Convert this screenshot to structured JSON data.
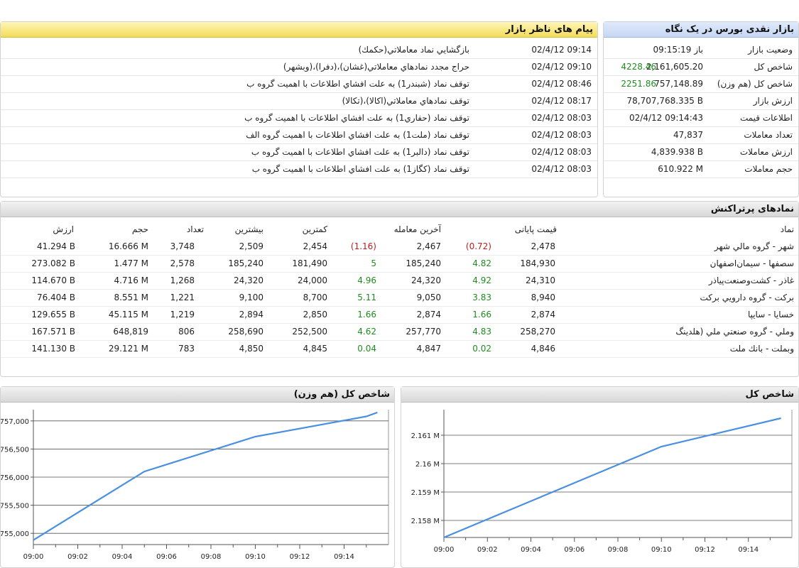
{
  "overview": {
    "title": "بازار نقدی بورس در یک نگاه",
    "rows": [
      {
        "label": "وضعیت بازار",
        "value": "باز 09:15:19",
        "change": ""
      },
      {
        "label": "شاخص کل",
        "value": "2,161,605.20",
        "change": "4228.46"
      },
      {
        "label": "شاخص کل (هم وزن)",
        "value": "757,148.89",
        "change": "2251.86"
      },
      {
        "label": "ارزش بازار",
        "value": "78,707,768.335 B",
        "change": ""
      },
      {
        "label": "اطلاعات قیمت",
        "value": "02/4/12 09:14:43",
        "change": ""
      },
      {
        "label": "تعداد معاملات",
        "value": "47,837",
        "change": ""
      },
      {
        "label": "ارزش معاملات",
        "value": "4,839.938 B",
        "change": ""
      },
      {
        "label": "حجم معاملات",
        "value": "610.922 M",
        "change": ""
      }
    ],
    "positive_color": "#1f8c1f"
  },
  "messages": {
    "title": "پیام های ناظر بازار",
    "rows": [
      {
        "time": "02/4/12 09:14",
        "text": "بازگشايي نماد معاملاتي(حكمك)"
      },
      {
        "time": "02/4/12 09:10",
        "text": "حراج مجدد نمادهاي معاملاتي(غشان)،(دفرا)،(وبشهر)"
      },
      {
        "time": "02/4/12 08:46",
        "text": "توقف نماد (شبندر1) به علت افشاي اطلاعات با اهميت گروه ب"
      },
      {
        "time": "02/4/12 08:17",
        "text": "توقف نمادهاي معاملاتي(اكالا)،(تكالا)"
      },
      {
        "time": "02/4/12 08:03",
        "text": "توقف نماد (حفاري1) به علت افشاي اطلاعات با اهميت گروه ب"
      },
      {
        "time": "02/4/12 08:03",
        "text": "توقف نماد (ملت1) به علت افشاي اطلاعات با اهميت گروه الف"
      },
      {
        "time": "02/4/12 08:03",
        "text": "توقف نماد (دالبر1) به علت افشاي اطلاعات با اهميت گروه ب"
      },
      {
        "time": "02/4/12 08:03",
        "text": "توقف نماد (كگاز1) به علت افشاي اطلاعات با اهميت گروه ب"
      }
    ]
  },
  "symbols": {
    "title": "نمادهای پرتراکنش",
    "headers": {
      "symbol": "نماد",
      "close": "قیمت پایانی",
      "last": "آخرین معامله",
      "low": "کمترین",
      "high": "بیشترین",
      "count": "تعداد",
      "volume": "حجم",
      "value": "ارزش"
    },
    "rows": [
      {
        "symbol": "شهر - گروه مالي شهر",
        "close": "2,478",
        "close_change": "(0.72)",
        "close_sign": "neg",
        "last": "2,467",
        "last_change": "(1.16)",
        "last_sign": "neg",
        "low": "2,454",
        "high": "2,509",
        "count": "3,748",
        "volume": "16.666 M",
        "value": "41.294 B"
      },
      {
        "symbol": "سصفها - سیمان‌اصفهان",
        "close": "184,930",
        "close_change": "4.82",
        "close_sign": "pos",
        "last": "185,240",
        "last_change": "5",
        "last_sign": "pos",
        "low": "181,490",
        "high": "185,240",
        "count": "2,578",
        "volume": "1.477 M",
        "value": "273.082 B"
      },
      {
        "symbol": "غاذر - کشت‌وصنعت‌پیاذر",
        "close": "24,310",
        "close_change": "4.92",
        "close_sign": "pos",
        "last": "24,320",
        "last_change": "4.96",
        "last_sign": "pos",
        "low": "24,000",
        "high": "24,320",
        "count": "1,268",
        "volume": "4.716 M",
        "value": "114.670 B"
      },
      {
        "symbol": "برکت - گروه دارويي بركت",
        "close": "8,940",
        "close_change": "3.83",
        "close_sign": "pos",
        "last": "9,050",
        "last_change": "5.11",
        "last_sign": "pos",
        "low": "8,700",
        "high": "9,100",
        "count": "1,221",
        "volume": "8.551 M",
        "value": "76.404 B"
      },
      {
        "symbol": "خسايا - سايپا",
        "close": "2,874",
        "close_change": "1.66",
        "close_sign": "pos",
        "last": "2,874",
        "last_change": "1.66",
        "last_sign": "pos",
        "low": "2,850",
        "high": "2,894",
        "count": "1,219",
        "volume": "45.115 M",
        "value": "129.655 B"
      },
      {
        "symbol": "وملي - گروه صنعتي ملي (هلدينگ",
        "close": "258,270",
        "close_change": "4.83",
        "close_sign": "pos",
        "last": "257,770",
        "last_change": "4.62",
        "last_sign": "pos",
        "low": "252,500",
        "high": "258,690",
        "count": "806",
        "volume": "648,819",
        "value": "167.571 B"
      },
      {
        "symbol": "وبملت - بانك ملت",
        "close": "4,846",
        "close_change": "0.02",
        "close_sign": "pos",
        "last": "4,847",
        "last_change": "0.04",
        "last_sign": "pos",
        "low": "4,845",
        "high": "4,850",
        "count": "783",
        "volume": "29.121 M",
        "value": "141.130 B"
      }
    ],
    "negative_color": "#c21b1b",
    "positive_color": "#1f8c1f"
  },
  "chart_data": [
    {
      "type": "line",
      "title": "شاخص کل (هم وزن)",
      "x_ticks": [
        "09:00",
        "09:02",
        "09:04",
        "09:06",
        "09:08",
        "09:10",
        "09:12",
        "09:14"
      ],
      "y_ticks": [
        "755,000",
        "755,500",
        "756,000",
        "756,500",
        "757,000"
      ],
      "ylim": [
        754800,
        757200
      ],
      "x": [
        0,
        5,
        10,
        15,
        15.5
      ],
      "values": [
        754880,
        756100,
        756720,
        757080,
        757150
      ],
      "line_color": "#4a90e2",
      "grid": true
    },
    {
      "type": "line",
      "title": "شاخص کل",
      "x_ticks": [
        "09:00",
        "09:02",
        "09:04",
        "09:06",
        "09:08",
        "09:10",
        "09:12",
        "09:14"
      ],
      "y_ticks": [
        "2.158 M",
        "2.159 M",
        "2.16 M",
        "2.161 M"
      ],
      "ylim": [
        2157400,
        2161900
      ],
      "x": [
        0,
        10,
        15.5
      ],
      "values": [
        2157400,
        2160600,
        2161600
      ],
      "line_color": "#4a90e2",
      "grid": true
    }
  ]
}
